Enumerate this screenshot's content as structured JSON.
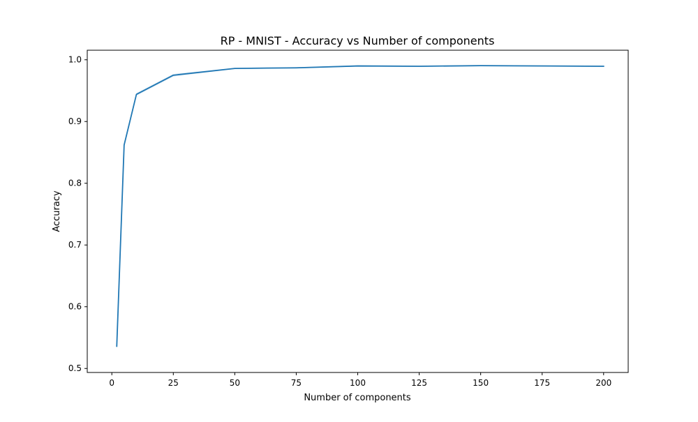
{
  "colors": {
    "line": "#1f77b4",
    "band": "#1f77b4",
    "axis": "#000000",
    "background": "#ffffff"
  },
  "chart_data": {
    "type": "line",
    "title": "RP - MNIST - Accuracy vs Number of components",
    "xlabel": "Number of components",
    "ylabel": "Accuracy",
    "xlim": [
      -10,
      210
    ],
    "ylim": [
      0.4935,
      1.0155
    ],
    "xticks": [
      0,
      25,
      50,
      75,
      100,
      125,
      150,
      175,
      200
    ],
    "xtick_labels": [
      "0",
      "25",
      "50",
      "75",
      "100",
      "125",
      "150",
      "175",
      "200"
    ],
    "yticks": [
      0.5,
      0.6,
      0.7,
      0.8,
      0.9,
      1.0
    ],
    "ytick_labels": [
      "0.5",
      "0.6",
      "0.7",
      "0.8",
      "0.9",
      "1.0"
    ],
    "grid": false,
    "legend": "none",
    "series": [
      {
        "x": [
          2,
          5,
          10,
          25,
          50,
          75,
          100,
          125,
          150,
          200
        ],
        "y": [
          0.536,
          0.862,
          0.944,
          0.975,
          0.986,
          0.987,
          0.99,
          0.9895,
          0.9905,
          0.9895
        ],
        "band_low": [
          0.532,
          0.859,
          0.942,
          0.973,
          0.985,
          0.986,
          0.989,
          0.9885,
          0.9895,
          0.9885
        ],
        "band_high": [
          0.54,
          0.865,
          0.946,
          0.977,
          0.987,
          0.988,
          0.991,
          0.9905,
          0.9915,
          0.9905
        ]
      }
    ]
  }
}
